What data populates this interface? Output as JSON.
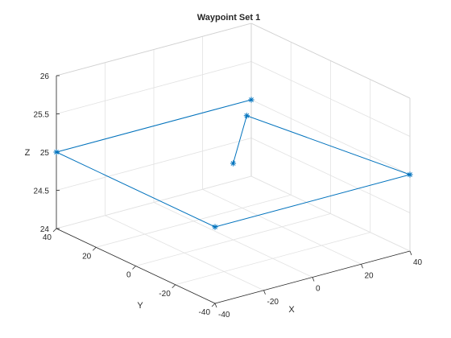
{
  "chart_data": {
    "type": "line",
    "title": "Waypoint Set 1",
    "xlabel": "X",
    "ylabel": "Y",
    "zlabel": "Z",
    "xlim": [
      -40,
      40
    ],
    "ylim": [
      -40,
      40
    ],
    "zlim": [
      24,
      26
    ],
    "xticks": [
      -40,
      -20,
      0,
      20,
      40
    ],
    "yticks": [
      -40,
      -20,
      0,
      20,
      40
    ],
    "zticks": [
      24,
      24.5,
      25,
      25.5,
      26
    ],
    "grid": true,
    "marker": "*",
    "line_color": "#0072BD",
    "series": [
      {
        "x": [
          0,
          30,
          40,
          -40,
          -40,
          40
        ],
        "y": [
          0,
          30,
          -40,
          -40,
          40,
          40
        ],
        "z": [
          25,
          25,
          25,
          25,
          25,
          25
        ]
      }
    ]
  }
}
